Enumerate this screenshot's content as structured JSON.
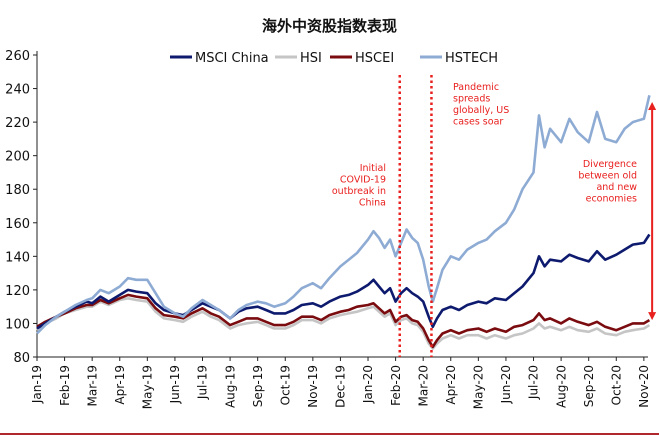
{
  "chart_data": {
    "type": "line",
    "title": "海外中资股指数表现",
    "xlabel": "",
    "ylabel": "",
    "ylim": [
      80,
      260
    ],
    "yticks": [
      80,
      100,
      120,
      140,
      160,
      180,
      200,
      220,
      240,
      260
    ],
    "categories": [
      "Jan-19",
      "Feb-19",
      "Mar-19",
      "Apr-19",
      "May-19",
      "Jun-19",
      "Jul-19",
      "Aug-19",
      "Sep-19",
      "Oct-19",
      "Nov-19",
      "Dec-19",
      "Jan-20",
      "Feb-20",
      "Mar-20",
      "Apr-20",
      "May-20",
      "Jun-20",
      "Jul-20",
      "Aug-20",
      "Sep-20",
      "Oct-20",
      "Nov-20"
    ],
    "legend_position": "top",
    "series": [
      {
        "name": "MSCI China",
        "color": "#0d1a6e",
        "points": [
          [
            0,
            97
          ],
          [
            0.3,
            100
          ],
          [
            0.7,
            104
          ],
          [
            1,
            107
          ],
          [
            1.4,
            110
          ],
          [
            1.8,
            113
          ],
          [
            2,
            112
          ],
          [
            2.3,
            116
          ],
          [
            2.6,
            113
          ],
          [
            3,
            117
          ],
          [
            3.3,
            120
          ],
          [
            3.6,
            119
          ],
          [
            4,
            118
          ],
          [
            4.3,
            112
          ],
          [
            4.6,
            108
          ],
          [
            5,
            106
          ],
          [
            5.3,
            105
          ],
          [
            5.6,
            108
          ],
          [
            6,
            112
          ],
          [
            6.3,
            110
          ],
          [
            6.6,
            108
          ],
          [
            7,
            103
          ],
          [
            7.3,
            107
          ],
          [
            7.6,
            109
          ],
          [
            8,
            110
          ],
          [
            8.3,
            108
          ],
          [
            8.6,
            106
          ],
          [
            9,
            106
          ],
          [
            9.3,
            108
          ],
          [
            9.6,
            111
          ],
          [
            10,
            112
          ],
          [
            10.3,
            110
          ],
          [
            10.6,
            113
          ],
          [
            11,
            116
          ],
          [
            11.3,
            117
          ],
          [
            11.6,
            119
          ],
          [
            12,
            123
          ],
          [
            12.2,
            126
          ],
          [
            12.4,
            122
          ],
          [
            12.6,
            118
          ],
          [
            12.8,
            121
          ],
          [
            13,
            113
          ],
          [
            13.2,
            118
          ],
          [
            13.4,
            121
          ],
          [
            13.6,
            118
          ],
          [
            13.8,
            116
          ],
          [
            14,
            113
          ],
          [
            14.2,
            104
          ],
          [
            14.35,
            98
          ],
          [
            14.5,
            103
          ],
          [
            14.7,
            108
          ],
          [
            15,
            110
          ],
          [
            15.3,
            108
          ],
          [
            15.6,
            111
          ],
          [
            16,
            113
          ],
          [
            16.3,
            112
          ],
          [
            16.6,
            115
          ],
          [
            17,
            114
          ],
          [
            17.3,
            118
          ],
          [
            17.6,
            122
          ],
          [
            18,
            130
          ],
          [
            18.2,
            140
          ],
          [
            18.4,
            134
          ],
          [
            18.6,
            138
          ],
          [
            19,
            137
          ],
          [
            19.3,
            141
          ],
          [
            19.6,
            139
          ],
          [
            20,
            137
          ],
          [
            20.3,
            143
          ],
          [
            20.6,
            138
          ],
          [
            21,
            141
          ],
          [
            21.3,
            144
          ],
          [
            21.6,
            147
          ],
          [
            22,
            148
          ],
          [
            22.2,
            153
          ]
        ]
      },
      {
        "name": "HSI",
        "color": "#c5c5c5",
        "points": [
          [
            0,
            96
          ],
          [
            0.3,
            100
          ],
          [
            0.7,
            103
          ],
          [
            1,
            106
          ],
          [
            1.4,
            108
          ],
          [
            1.8,
            110
          ],
          [
            2,
            110
          ],
          [
            2.3,
            113
          ],
          [
            2.6,
            111
          ],
          [
            3,
            114
          ],
          [
            3.3,
            115
          ],
          [
            3.6,
            114
          ],
          [
            4,
            113
          ],
          [
            4.3,
            107
          ],
          [
            4.6,
            103
          ],
          [
            5,
            102
          ],
          [
            5.3,
            101
          ],
          [
            5.6,
            104
          ],
          [
            6,
            107
          ],
          [
            6.3,
            104
          ],
          [
            6.6,
            102
          ],
          [
            7,
            97
          ],
          [
            7.3,
            99
          ],
          [
            7.6,
            100
          ],
          [
            8,
            101
          ],
          [
            8.3,
            99
          ],
          [
            8.6,
            97
          ],
          [
            9,
            97
          ],
          [
            9.3,
            99
          ],
          [
            9.6,
            102
          ],
          [
            10,
            102
          ],
          [
            10.3,
            100
          ],
          [
            10.6,
            103
          ],
          [
            11,
            105
          ],
          [
            11.3,
            106
          ],
          [
            11.6,
            107
          ],
          [
            12,
            109
          ],
          [
            12.2,
            110
          ],
          [
            12.4,
            107
          ],
          [
            12.6,
            104
          ],
          [
            12.8,
            106
          ],
          [
            13,
            99
          ],
          [
            13.2,
            102
          ],
          [
            13.4,
            103
          ],
          [
            13.6,
            100
          ],
          [
            13.8,
            99
          ],
          [
            14,
            95
          ],
          [
            14.2,
            88
          ],
          [
            14.35,
            85
          ],
          [
            14.5,
            88
          ],
          [
            14.7,
            91
          ],
          [
            15,
            93
          ],
          [
            15.3,
            91
          ],
          [
            15.6,
            93
          ],
          [
            16,
            93
          ],
          [
            16.3,
            91
          ],
          [
            16.6,
            93
          ],
          [
            17,
            91
          ],
          [
            17.3,
            93
          ],
          [
            17.6,
            94
          ],
          [
            18,
            97
          ],
          [
            18.2,
            100
          ],
          [
            18.4,
            97
          ],
          [
            18.6,
            98
          ],
          [
            19,
            96
          ],
          [
            19.3,
            98
          ],
          [
            19.6,
            96
          ],
          [
            20,
            95
          ],
          [
            20.3,
            97
          ],
          [
            20.6,
            94
          ],
          [
            21,
            93
          ],
          [
            21.3,
            95
          ],
          [
            21.6,
            96
          ],
          [
            22,
            97
          ],
          [
            22.2,
            99
          ]
        ]
      },
      {
        "name": "HSCEI",
        "color": "#7a0c10",
        "points": [
          [
            0,
            98
          ],
          [
            0.3,
            101
          ],
          [
            0.7,
            104
          ],
          [
            1,
            106
          ],
          [
            1.4,
            109
          ],
          [
            1.8,
            111
          ],
          [
            2,
            111
          ],
          [
            2.3,
            114
          ],
          [
            2.6,
            112
          ],
          [
            3,
            115
          ],
          [
            3.3,
            117
          ],
          [
            3.6,
            116
          ],
          [
            4,
            115
          ],
          [
            4.3,
            109
          ],
          [
            4.6,
            105
          ],
          [
            5,
            104
          ],
          [
            5.3,
            103
          ],
          [
            5.6,
            106
          ],
          [
            6,
            109
          ],
          [
            6.3,
            106
          ],
          [
            6.6,
            104
          ],
          [
            7,
            99
          ],
          [
            7.3,
            101
          ],
          [
            7.6,
            103
          ],
          [
            8,
            103
          ],
          [
            8.3,
            101
          ],
          [
            8.6,
            99
          ],
          [
            9,
            99
          ],
          [
            9.3,
            101
          ],
          [
            9.6,
            104
          ],
          [
            10,
            104
          ],
          [
            10.3,
            102
          ],
          [
            10.6,
            105
          ],
          [
            11,
            107
          ],
          [
            11.3,
            108
          ],
          [
            11.6,
            110
          ],
          [
            12,
            111
          ],
          [
            12.2,
            112
          ],
          [
            12.4,
            109
          ],
          [
            12.6,
            106
          ],
          [
            12.8,
            108
          ],
          [
            13,
            101
          ],
          [
            13.2,
            104
          ],
          [
            13.4,
            105
          ],
          [
            13.6,
            102
          ],
          [
            13.8,
            101
          ],
          [
            14,
            97
          ],
          [
            14.2,
            90
          ],
          [
            14.35,
            86
          ],
          [
            14.5,
            90
          ],
          [
            14.7,
            94
          ],
          [
            15,
            96
          ],
          [
            15.3,
            94
          ],
          [
            15.6,
            96
          ],
          [
            16,
            97
          ],
          [
            16.3,
            95
          ],
          [
            16.6,
            97
          ],
          [
            17,
            95
          ],
          [
            17.3,
            98
          ],
          [
            17.6,
            99
          ],
          [
            18,
            102
          ],
          [
            18.2,
            106
          ],
          [
            18.4,
            102
          ],
          [
            18.6,
            103
          ],
          [
            19,
            100
          ],
          [
            19.3,
            103
          ],
          [
            19.6,
            101
          ],
          [
            20,
            99
          ],
          [
            20.3,
            101
          ],
          [
            20.6,
            98
          ],
          [
            21,
            96
          ],
          [
            21.3,
            98
          ],
          [
            21.6,
            100
          ],
          [
            22,
            100
          ],
          [
            22.2,
            102
          ]
        ]
      },
      {
        "name": "HSTECH",
        "color": "#8eabd4",
        "points": [
          [
            0,
            94
          ],
          [
            0.3,
            99
          ],
          [
            0.7,
            104
          ],
          [
            1,
            107
          ],
          [
            1.4,
            111
          ],
          [
            1.8,
            114
          ],
          [
            2,
            115
          ],
          [
            2.3,
            120
          ],
          [
            2.6,
            118
          ],
          [
            3,
            122
          ],
          [
            3.3,
            127
          ],
          [
            3.6,
            126
          ],
          [
            4,
            126
          ],
          [
            4.3,
            118
          ],
          [
            4.6,
            110
          ],
          [
            5,
            106
          ],
          [
            5.3,
            104
          ],
          [
            5.6,
            109
          ],
          [
            6,
            114
          ],
          [
            6.3,
            111
          ],
          [
            6.6,
            108
          ],
          [
            7,
            103
          ],
          [
            7.3,
            108
          ],
          [
            7.6,
            111
          ],
          [
            8,
            113
          ],
          [
            8.3,
            112
          ],
          [
            8.6,
            110
          ],
          [
            9,
            112
          ],
          [
            9.3,
            116
          ],
          [
            9.6,
            121
          ],
          [
            10,
            124
          ],
          [
            10.3,
            121
          ],
          [
            10.6,
            127
          ],
          [
            11,
            134
          ],
          [
            11.3,
            138
          ],
          [
            11.6,
            142
          ],
          [
            12,
            150
          ],
          [
            12.2,
            155
          ],
          [
            12.4,
            151
          ],
          [
            12.6,
            145
          ],
          [
            12.8,
            150
          ],
          [
            13,
            140
          ],
          [
            13.2,
            148
          ],
          [
            13.4,
            156
          ],
          [
            13.6,
            151
          ],
          [
            13.8,
            148
          ],
          [
            14,
            138
          ],
          [
            14.2,
            122
          ],
          [
            14.35,
            113
          ],
          [
            14.5,
            121
          ],
          [
            14.7,
            132
          ],
          [
            15,
            140
          ],
          [
            15.3,
            138
          ],
          [
            15.6,
            144
          ],
          [
            16,
            148
          ],
          [
            16.3,
            150
          ],
          [
            16.6,
            155
          ],
          [
            17,
            160
          ],
          [
            17.3,
            168
          ],
          [
            17.6,
            180
          ],
          [
            18,
            190
          ],
          [
            18.2,
            224
          ],
          [
            18.4,
            205
          ],
          [
            18.6,
            216
          ],
          [
            19,
            208
          ],
          [
            19.3,
            222
          ],
          [
            19.6,
            214
          ],
          [
            20,
            208
          ],
          [
            20.3,
            226
          ],
          [
            20.6,
            210
          ],
          [
            21,
            208
          ],
          [
            21.3,
            216
          ],
          [
            21.6,
            220
          ],
          [
            22,
            222
          ],
          [
            22.2,
            236
          ]
        ]
      }
    ],
    "vlines": [
      {
        "x": 13.15,
        "label": "Initial COVID-19 outbreak in China"
      },
      {
        "x": 14.3,
        "label": "Pandemic spreads globally, US cases soar"
      }
    ],
    "divergence": {
      "x": 22.3,
      "y_from": 102,
      "y_to": 232,
      "label": "Divergence between old and new economies"
    },
    "annotations": {
      "covid_china_lines": [
        "Initial",
        "COVID-19",
        "outbreak in",
        "China"
      ],
      "pandemic_lines": [
        "Pandemic",
        "spreads",
        "globally, US",
        "cases soar"
      ],
      "divergence_lines": [
        "Divergence",
        "between old",
        "and new",
        "economies"
      ]
    },
    "annotation_color": "#e8201e"
  }
}
